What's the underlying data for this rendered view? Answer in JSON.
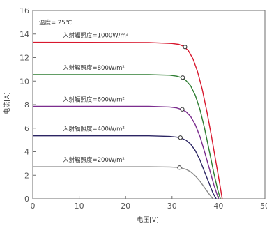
{
  "chart_data": {
    "type": "line",
    "title": "",
    "xlabel": "电压[V]",
    "ylabel": "电流[A]",
    "xlim": [
      0,
      50
    ],
    "ylim": [
      0,
      16
    ],
    "xticks": [
      0,
      10,
      20,
      30,
      40,
      50
    ],
    "yticks": [
      0,
      2,
      4,
      6,
      8,
      10,
      12,
      14,
      16
    ],
    "grid": false,
    "annotation": "温度= 25℃",
    "series": [
      {
        "name": "入射辐照度=1000W/m²",
        "color": "#d8182e",
        "points": [
          [
            0,
            13.3
          ],
          [
            25,
            13.28
          ],
          [
            30,
            13.2
          ],
          [
            31.5,
            13.12
          ],
          [
            32.5,
            12.95
          ],
          [
            33.5,
            12.6
          ],
          [
            34.5,
            11.9
          ],
          [
            35.5,
            10.8
          ],
          [
            36.5,
            9.3
          ],
          [
            37.5,
            7.4
          ],
          [
            38.5,
            5.3
          ],
          [
            39.5,
            3.0
          ],
          [
            40.3,
            1.2
          ],
          [
            40.8,
            0
          ]
        ],
        "marker": [
          32.8,
          12.9
        ]
      },
      {
        "name": "入射辐照度=800W/m²",
        "color": "#2e7d32",
        "points": [
          [
            0,
            10.55
          ],
          [
            25,
            10.55
          ],
          [
            29.5,
            10.5
          ],
          [
            31,
            10.42
          ],
          [
            32,
            10.3
          ],
          [
            33,
            10.05
          ],
          [
            34,
            9.6
          ],
          [
            35,
            8.8
          ],
          [
            36,
            7.6
          ],
          [
            37,
            6.0
          ],
          [
            38,
            4.1
          ],
          [
            39,
            2.2
          ],
          [
            39.8,
            0.8
          ],
          [
            40.4,
            0
          ]
        ],
        "marker": [
          32.3,
          10.3
        ]
      },
      {
        "name": "入射辐照度=600W/m²",
        "color": "#7b2d8e",
        "points": [
          [
            0,
            7.85
          ],
          [
            25,
            7.85
          ],
          [
            29.5,
            7.8
          ],
          [
            31,
            7.72
          ],
          [
            32,
            7.6
          ],
          [
            33,
            7.4
          ],
          [
            34,
            7.0
          ],
          [
            35,
            6.3
          ],
          [
            36,
            5.3
          ],
          [
            37,
            4.0
          ],
          [
            38,
            2.6
          ],
          [
            39,
            1.2
          ],
          [
            40,
            0
          ]
        ],
        "marker": [
          32.2,
          7.6
        ]
      },
      {
        "name": "入射辐照度=400W/m²",
        "color": "#2b2563",
        "points": [
          [
            0,
            5.35
          ],
          [
            25,
            5.35
          ],
          [
            29.5,
            5.3
          ],
          [
            31,
            5.24
          ],
          [
            32,
            5.15
          ],
          [
            33,
            4.98
          ],
          [
            34,
            4.65
          ],
          [
            35,
            4.1
          ],
          [
            36,
            3.3
          ],
          [
            37,
            2.3
          ],
          [
            38,
            1.3
          ],
          [
            38.8,
            0.5
          ],
          [
            39.5,
            0
          ]
        ],
        "marker": [
          31.8,
          5.2
        ]
      },
      {
        "name": "入射辐照度=200W/m²",
        "color": "#8a8a8a",
        "points": [
          [
            0,
            2.72
          ],
          [
            25,
            2.72
          ],
          [
            29.5,
            2.7
          ],
          [
            31,
            2.67
          ],
          [
            32,
            2.62
          ],
          [
            33,
            2.5
          ],
          [
            34,
            2.3
          ],
          [
            35,
            1.95
          ],
          [
            36,
            1.5
          ],
          [
            37,
            0.95
          ],
          [
            38,
            0.4
          ],
          [
            38.8,
            0
          ]
        ],
        "marker": [
          31.6,
          2.65
        ]
      }
    ]
  }
}
